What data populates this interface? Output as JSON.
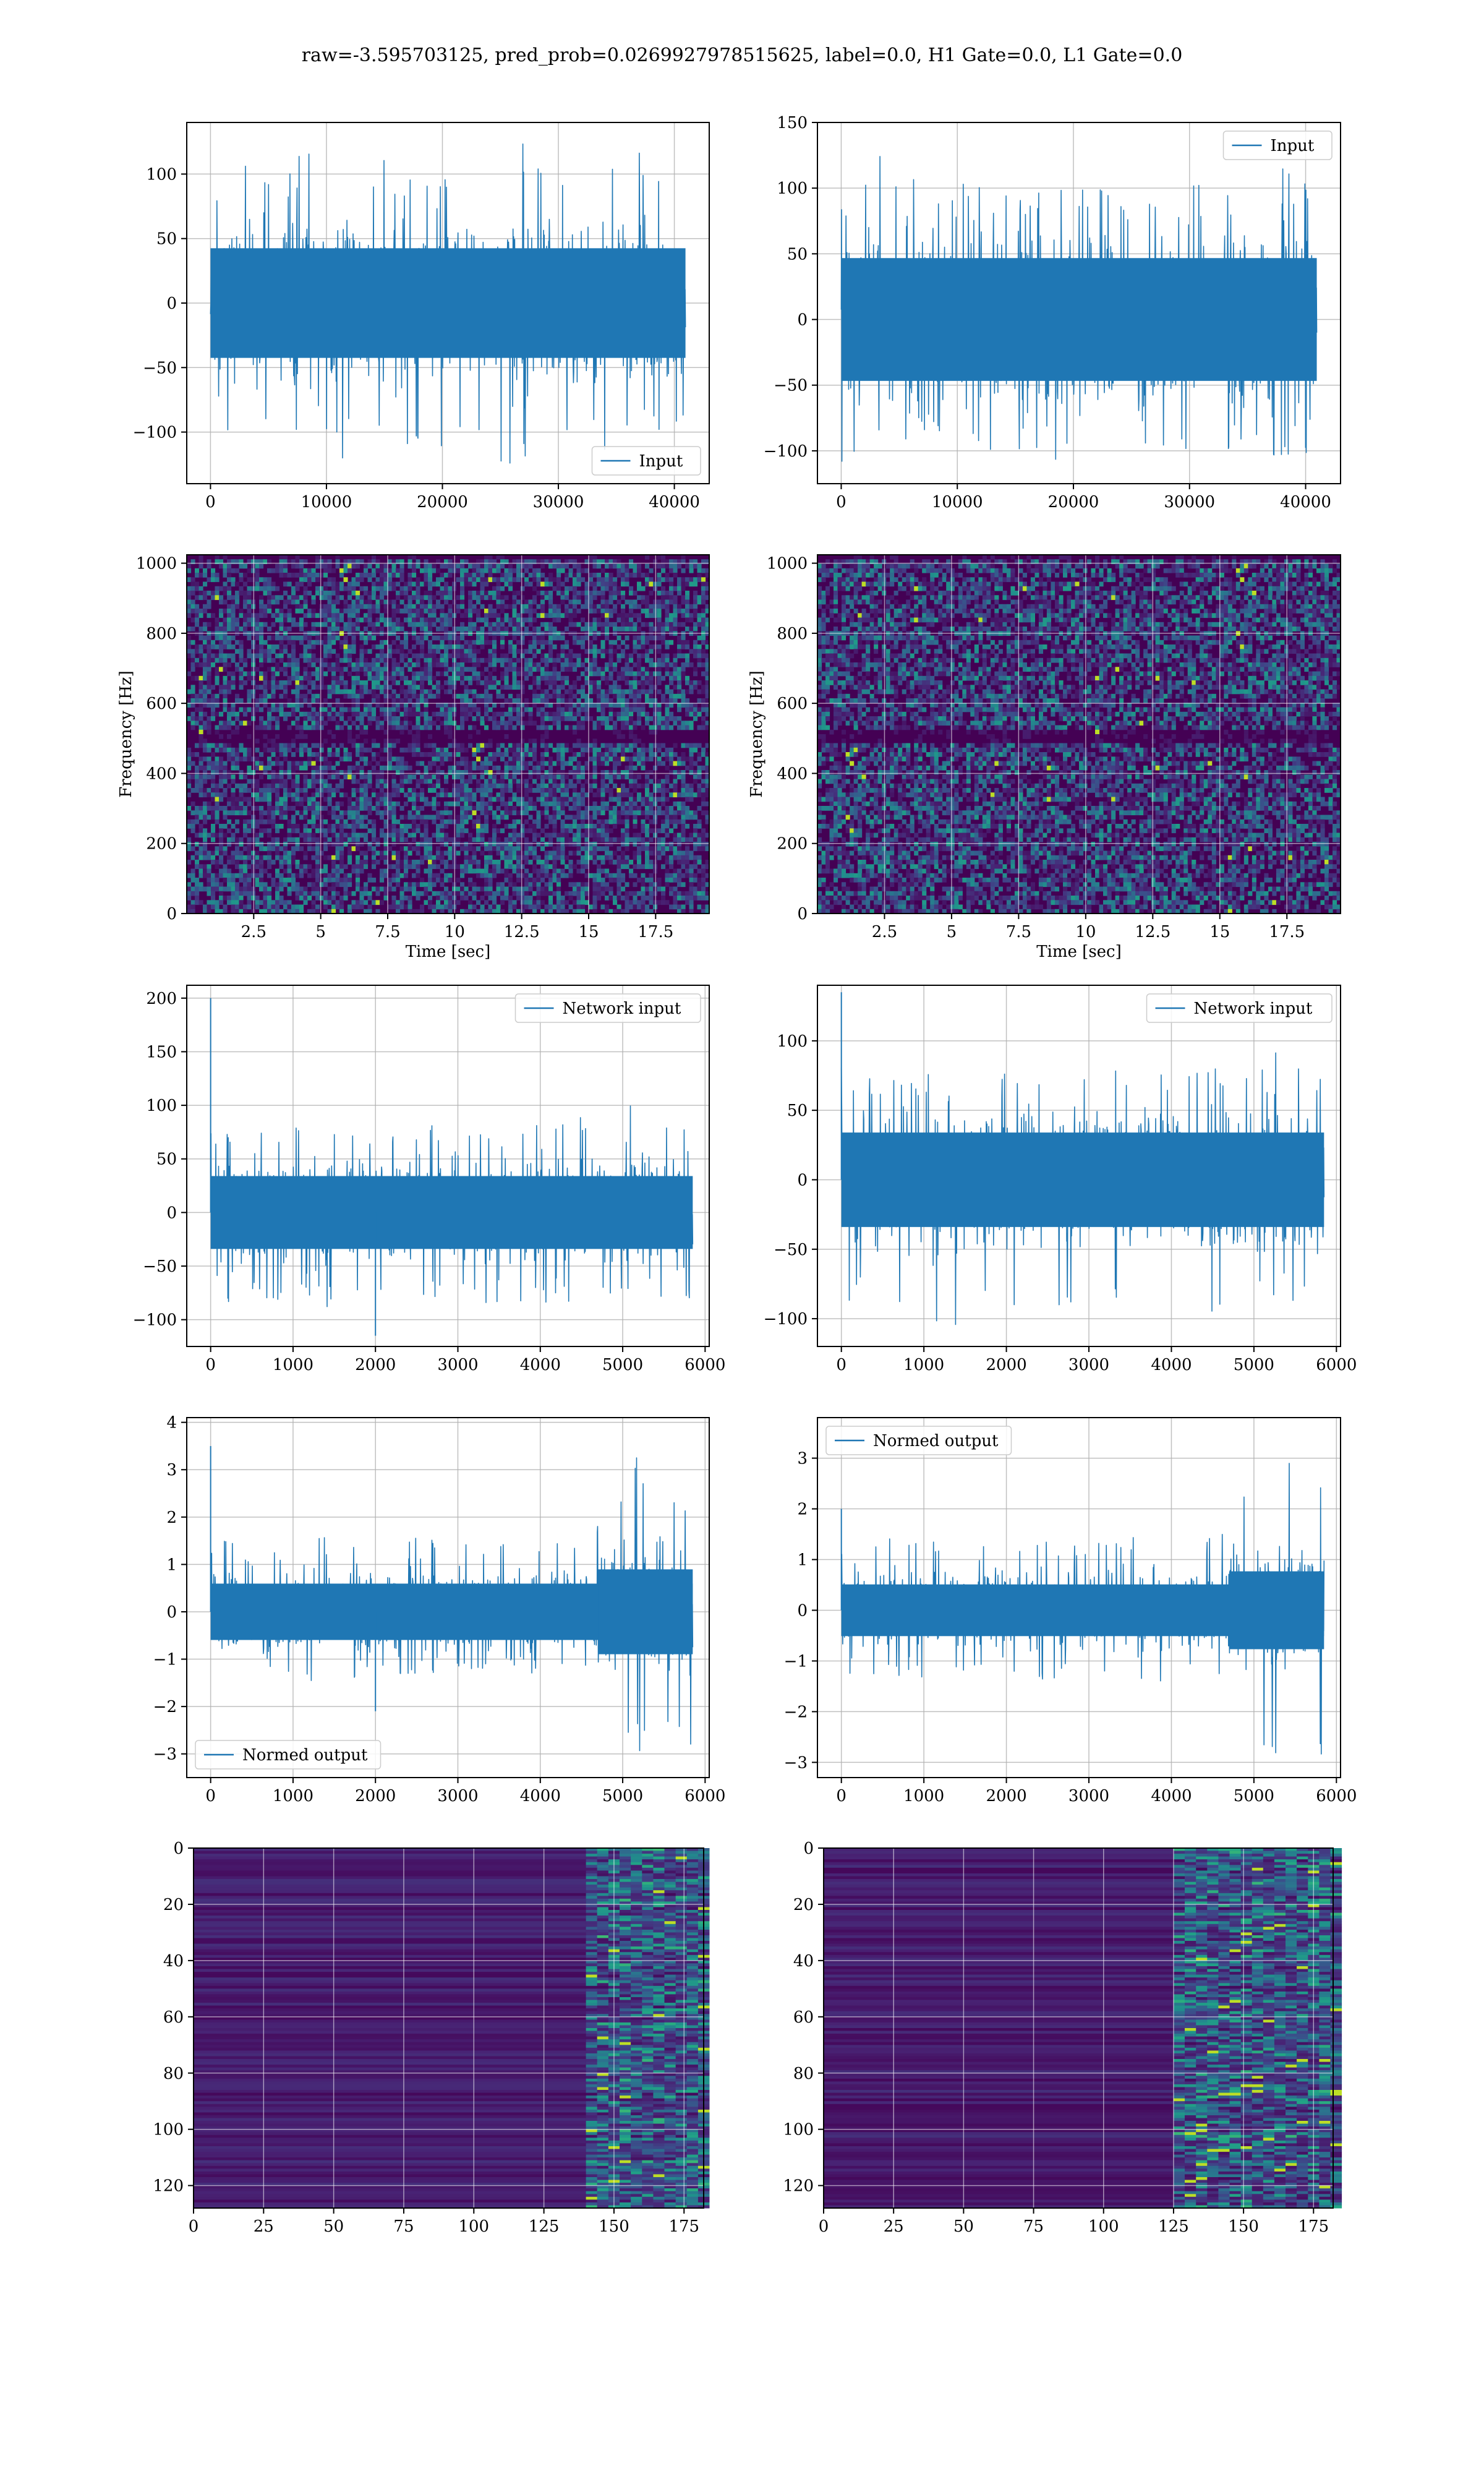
{
  "figure": {
    "suptitle": "raw=-3.595703125, pred_prob=0.0269927978515625, label=0.0, H1 Gate=0.0, L1 Gate=0.0"
  },
  "colors": {
    "line": "#1f77b4",
    "grid": "#b0b0b0",
    "viridis_low": "#440154",
    "viridis_high": "#fde725"
  },
  "chart_data": [
    {
      "id": "raw-left",
      "type": "line",
      "series": [
        {
          "name": "Input",
          "envelope": {
            "x_max": 40960,
            "upper": [
              100,
              110,
              120,
              118,
              105,
              112,
              125,
              110,
              118,
              105
            ],
            "lower": [
              -115,
              -118,
              -130,
              -112,
              -125,
              -120,
              -128,
              -115,
              -112,
              -108
            ],
            "bulk": 50
          }
        }
      ],
      "xlim": [
        -2048,
        43008
      ],
      "ylim": [
        -140,
        140
      ],
      "xticks": [
        0,
        10000,
        20000,
        30000,
        40000
      ],
      "yticks": [
        -100,
        -50,
        0,
        50,
        100
      ],
      "legend_loc": "lower-right",
      "grid": true
    },
    {
      "id": "raw-right",
      "type": "line",
      "series": [
        {
          "name": "Input",
          "envelope": {
            "x_max": 40960,
            "upper": [
              100,
              135,
              110,
              95,
              112,
              100,
              115,
              100,
              120,
              105
            ],
            "lower": [
              -108,
              -105,
              -112,
              -100,
              -108,
              -104,
              -110,
              -102,
              -108,
              -100
            ],
            "bulk": 55
          }
        }
      ],
      "xlim": [
        -2048,
        43008
      ],
      "ylim": [
        -125,
        150
      ],
      "xticks": [
        0,
        10000,
        20000,
        30000,
        40000
      ],
      "yticks": [
        -100,
        -50,
        0,
        50,
        100,
        150
      ],
      "legend_loc": "top-right",
      "grid": true
    },
    {
      "id": "spec-left",
      "type": "heatmap",
      "xlabel": "Time [sec]",
      "ylabel": "Frequency [Hz]",
      "xlim": [
        0,
        19.5
      ],
      "ylim": [
        0,
        1024
      ],
      "xticks": [
        2.5,
        5.0,
        7.5,
        10.0,
        12.5,
        15.0,
        17.5
      ],
      "yticks": [
        0,
        200,
        400,
        600,
        800,
        1000
      ],
      "dark_band_hz": [
        480,
        520
      ],
      "grid": true,
      "colormap": "viridis"
    },
    {
      "id": "spec-right",
      "type": "heatmap",
      "xlabel": "Time [sec]",
      "ylabel": "Frequency [Hz]",
      "xlim": [
        0,
        19.5
      ],
      "ylim": [
        0,
        1024
      ],
      "xticks": [
        2.5,
        5.0,
        7.5,
        10.0,
        12.5,
        15.0,
        17.5
      ],
      "yticks": [
        0,
        200,
        400,
        600,
        800,
        1000
      ],
      "dark_band_hz": [
        480,
        520
      ],
      "grid": true,
      "colormap": "viridis"
    },
    {
      "id": "net-left",
      "type": "line",
      "series": [
        {
          "name": "Network input",
          "envelope": {
            "x_max": 5850,
            "upper": [
              75,
              80,
              85,
              80,
              90,
              88,
              85,
              95,
              120,
              80
            ],
            "lower": [
              -85,
              -80,
              -88,
              -90,
              -85,
              -88,
              -85,
              -85,
              -90,
              -80
            ],
            "bulk": 40,
            "spikes": [
              [
                0,
                200
              ],
              [
                2000,
                -115
              ]
            ]
          }
        }
      ],
      "xlim": [
        -290,
        6050
      ],
      "ylim": [
        -125,
        212
      ],
      "xticks": [
        0,
        1000,
        2000,
        3000,
        4000,
        5000,
        6000
      ],
      "yticks": [
        -100,
        -50,
        0,
        50,
        100,
        150,
        200
      ],
      "legend_loc": "top-right",
      "grid": true
    },
    {
      "id": "net-right",
      "type": "line",
      "series": [
        {
          "name": "Network input",
          "envelope": {
            "x_max": 5850,
            "upper": [
              85,
              80,
              75,
              80,
              78,
              80,
              82,
              85,
              105,
              75
            ],
            "lower": [
              -90,
              -95,
              -105,
              -100,
              -95,
              -92,
              -95,
              -95,
              -90,
              -85
            ],
            "bulk": 40,
            "spikes": [
              [
                0,
                135
              ]
            ]
          }
        }
      ],
      "xlim": [
        -290,
        6050
      ],
      "ylim": [
        -120,
        140
      ],
      "xticks": [
        0,
        1000,
        2000,
        3000,
        4000,
        5000,
        6000
      ],
      "yticks": [
        -100,
        -50,
        0,
        50,
        100
      ],
      "legend_loc": "top-right",
      "grid": true
    },
    {
      "id": "norm-left",
      "type": "line",
      "series": [
        {
          "name": "Normed output",
          "envelope": {
            "x_max": 5850,
            "upper": [
              1.5,
              1.6,
              1.6,
              1.5,
              1.6,
              1.5,
              1.6,
              1.7,
              3.7,
              2.4
            ],
            "lower": [
              -1.3,
              -1.3,
              -1.6,
              -1.4,
              -1.3,
              -1.2,
              -1.3,
              -1.4,
              -3.2,
              -2.9
            ],
            "bulk": 0.7,
            "burst": [
              4700,
              5850,
              1.6
            ],
            "spikes": [
              [
                0,
                3.5
              ],
              [
                2000,
                -2.1
              ]
            ]
          }
        }
      ],
      "xlim": [
        -290,
        6050
      ],
      "ylim": [
        -3.5,
        4.1
      ],
      "xticks": [
        0,
        1000,
        2000,
        3000,
        4000,
        5000,
        6000
      ],
      "yticks": [
        -3,
        -2,
        -1,
        0,
        1,
        2,
        3,
        4
      ],
      "legend_loc": "lower-left",
      "grid": true
    },
    {
      "id": "norm-right",
      "type": "line",
      "series": [
        {
          "name": "Normed output",
          "envelope": {
            "x_max": 5850,
            "upper": [
              1.4,
              1.5,
              1.4,
              1.5,
              1.4,
              1.5,
              1.4,
              1.5,
              3.6,
              2.4
            ],
            "lower": [
              -1.3,
              -1.3,
              -1.4,
              -1.3,
              -1.4,
              -1.3,
              -1.4,
              -1.3,
              -3.0,
              -3.1
            ],
            "bulk": 0.6,
            "burst": [
              4700,
              5850,
              1.6
            ],
            "spikes": [
              [
                0,
                2.0
              ]
            ]
          }
        }
      ],
      "xlim": [
        -290,
        6050
      ],
      "ylim": [
        -3.3,
        3.8
      ],
      "xticks": [
        0,
        1000,
        2000,
        3000,
        4000,
        5000,
        6000
      ],
      "yticks": [
        -3,
        -2,
        -1,
        0,
        1,
        2,
        3
      ],
      "legend_loc": "top-left",
      "grid": true
    },
    {
      "id": "feat-left",
      "type": "heatmap",
      "xlim": [
        0,
        182
      ],
      "ylim": [
        128,
        0
      ],
      "xticks": [
        0,
        25,
        50,
        75,
        100,
        125,
        150,
        175
      ],
      "yticks": [
        0,
        20,
        40,
        60,
        80,
        100,
        120
      ],
      "active_from_col": 140,
      "grid": true,
      "colormap": "viridis"
    },
    {
      "id": "feat-right",
      "type": "heatmap",
      "xlim": [
        0,
        182
      ],
      "ylim": [
        128,
        0
      ],
      "xticks": [
        0,
        25,
        50,
        75,
        100,
        125,
        150,
        175
      ],
      "yticks": [
        0,
        20,
        40,
        60,
        80,
        100,
        120
      ],
      "active_from_col": 125,
      "grid": true,
      "colormap": "viridis"
    }
  ]
}
